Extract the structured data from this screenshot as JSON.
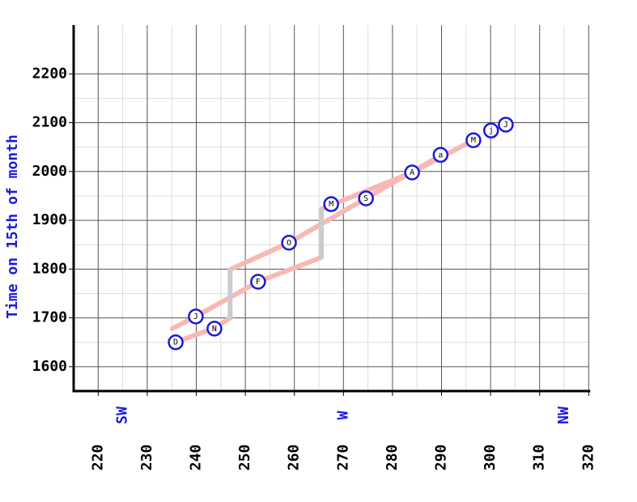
{
  "chart_data": {
    "type": "line",
    "ylabel": "Time on 15th of month",
    "xlim": [
      215,
      320
    ],
    "xticks": [
      220,
      230,
      240,
      250,
      260,
      270,
      280,
      290,
      300,
      310,
      320
    ],
    "ylim": [
      1550,
      2300
    ],
    "yticks": [
      1600,
      1700,
      1800,
      1900,
      2000,
      2100,
      2200
    ],
    "grid": true,
    "direction_labels": [
      {
        "value": 225,
        "label": "SW"
      },
      {
        "value": 270,
        "label": "W"
      },
      {
        "value": 315,
        "label": "NW"
      }
    ],
    "series": [
      {
        "color": "#f8b8b4",
        "x": [
          235.1,
          239.9,
          252.6,
          265.5,
          null,
          265.5,
          284.0,
          296.5
        ],
        "values": [
          1678,
          1702.8,
          1774,
          1824,
          null,
          1923,
          1998,
          2064
        ]
      },
      {
        "color": "#f8b8b4",
        "x": [
          290.0,
          274.6,
          258.9,
          246.9,
          null,
          246.9,
          243.7,
          235.8
        ],
        "values": [
          2034,
          1945,
          1854,
          1799,
          null,
          1700,
          1679,
          1650
        ]
      },
      {
        "color": "#cccccc",
        "x": [
          265.5,
          265.5,
          null,
          246.9,
          246.9
        ],
        "values": [
          1824,
          1923,
          null,
          1700,
          1799
        ]
      }
    ],
    "points": {
      "color": "#1a1adc",
      "labels": [
        "D",
        "J",
        "N",
        "F",
        "O",
        "M",
        "S",
        "A",
        "a",
        "M",
        "j",
        "J"
      ],
      "x": [
        235.8,
        239.9,
        243.7,
        252.6,
        258.9,
        267.5,
        274.6,
        284.0,
        289.8,
        296.5,
        300.1,
        303.1
      ],
      "values": [
        1650,
        1702.8,
        1678,
        1774,
        1854,
        1933,
        1945,
        1998,
        2034,
        2064,
        2084,
        2096
      ]
    }
  }
}
